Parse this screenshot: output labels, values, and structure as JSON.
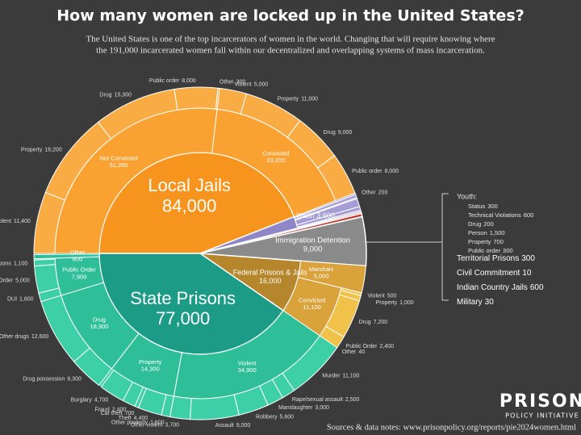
{
  "header": {
    "title": "How many women are locked up in the United States?",
    "subtitle": [
      "The United States is one of the top incarcerators of women in the world. Changing that will require knowing where",
      "the 191,000 incarcerated women fall within our decentralized and overlapping systems of mass incarceration."
    ]
  },
  "chart_data": {
    "type": "sunburst",
    "systems": [
      {
        "name": "Local Jails",
        "value": 84000,
        "label": "84,000",
        "colors": [
          "#f7941d",
          "#f9a232",
          "#faac44"
        ],
        "children": [
          {
            "name": "Not Convicted",
            "value": 51200,
            "label": "51,200",
            "children": [
              {
                "name": "Violent",
                "value": 11400,
                "label": "11,400"
              },
              {
                "name": "Property",
                "value": 16200,
                "label": "16,200"
              },
              {
                "name": "Drug",
                "value": 15300,
                "label": "15,300"
              },
              {
                "name": "Public order",
                "value": 8000,
                "label": "8,000"
              },
              {
                "name": "Other",
                "value": 300
              }
            ]
          },
          {
            "name": "Convicted",
            "value": 33200,
            "label": "33,200",
            "children": [
              {
                "name": "Violent",
                "value": 5000,
                "label": "5,000"
              },
              {
                "name": "Property",
                "value": 11000,
                "label": "11,000"
              },
              {
                "name": "Drug",
                "value": 9000,
                "label": "9,000"
              },
              {
                "name": "Public order",
                "value": 8000,
                "label": "8,000"
              },
              {
                "name": "Other",
                "value": 200
              }
            ]
          }
        ]
      },
      {
        "name": "Youth",
        "value": 3600,
        "label": "3,600",
        "breakdown_title": "Youth:",
        "colors": [
          "#8e86c6",
          "#a49dd6",
          "#a49dd6"
        ],
        "children": [
          {
            "name": "Status",
            "value": 300
          },
          {
            "name": "Technical Violations",
            "value": 600
          },
          {
            "name": "Drug",
            "value": 200
          },
          {
            "name": "Person",
            "value": 1500,
            "label": "1,500"
          },
          {
            "name": "Property",
            "value": 700
          },
          {
            "name": "Public order",
            "value": 300
          }
        ]
      },
      {
        "name": "Territorial Prisons",
        "value": 300,
        "colors": [
          "#d64545"
        ]
      },
      {
        "name": "Civil Commitment",
        "value": 10,
        "colors": [
          "#eeeeee"
        ]
      },
      {
        "name": "Indian Country Jails",
        "value": 600,
        "colors": [
          "#c0392b"
        ]
      },
      {
        "name": "Military",
        "value": 30,
        "colors": [
          "#f2f2f2"
        ]
      },
      {
        "name": "Immigration Detention",
        "value": 9000,
        "label": "9,000",
        "colors": [
          "#8a8a8a"
        ]
      },
      {
        "name": "Federal Prisons & Jails",
        "value": 16000,
        "label": "16,000",
        "colors": [
          "#b5862c",
          "#d9a23a",
          "#f0c24a"
        ],
        "children": [
          {
            "name": "Marshals",
            "value": 5000,
            "label": "5,000"
          },
          {
            "name": "Convicted",
            "value": 11100,
            "label": "11,100",
            "children": [
              {
                "name": "Violent",
                "value": 500
              },
              {
                "name": "Property",
                "value": 1000,
                "label": "1,000"
              },
              {
                "name": "Drug",
                "value": 7200,
                "label": "7,200"
              },
              {
                "name": "Public Order",
                "value": 2400,
                "label": "2,400"
              },
              {
                "name": "Other",
                "value": 40
              }
            ]
          }
        ]
      },
      {
        "name": "State Prisons",
        "value": 77000,
        "label": "77,000",
        "colors": [
          "#1c9c86",
          "#2fbf98",
          "#3dd0a6"
        ],
        "children": [
          {
            "name": "Violent",
            "value": 34900,
            "label": "34,900",
            "children": [
              {
                "name": "Murder",
                "value": 11100,
                "label": "11,100"
              },
              {
                "name": "Rape/sexual assault",
                "value": 2500,
                "label": "2,500"
              },
              {
                "name": "Manslaughter",
                "value": 3000,
                "label": "3,000"
              },
              {
                "name": "Robbery",
                "value": 5600,
                "label": "5,600"
              },
              {
                "name": "Assault",
                "value": 9000,
                "label": "9,000"
              },
              {
                "name": "Other violent",
                "value": 3700,
                "label": "3,700"
              }
            ]
          },
          {
            "name": "Property",
            "value": 14300,
            "label": "14,300",
            "children": [
              {
                "name": "Other property",
                "value": 1600,
                "label": "1,600"
              },
              {
                "name": "Theft",
                "value": 4400,
                "label": "4,400"
              },
              {
                "name": "Car theft",
                "value": 700
              },
              {
                "name": "Fraud",
                "value": 2400,
                "label": "2,400"
              },
              {
                "name": "Burglary",
                "value": 4700,
                "label": "4,700"
              }
            ]
          },
          {
            "name": "Drug",
            "value": 18900,
            "label": "18,900",
            "children": [
              {
                "name": "Drug possession",
                "value": 6300,
                "label": "6,300"
              },
              {
                "name": "Other drugs",
                "value": 12600,
                "label": "12,600"
              }
            ]
          },
          {
            "name": "Public Order",
            "value": 7900,
            "label": "7,900",
            "children": [
              {
                "name": "DUI",
                "value": 1600,
                "label": "1,600"
              },
              {
                "name": "Other Public Order",
                "value": 5000,
                "label": "5,000"
              },
              {
                "name": "Weapons",
                "value": 1100,
                "label": "1,100"
              }
            ]
          },
          {
            "name": "Other",
            "value": 800
          }
        ]
      }
    ]
  },
  "footer": {
    "logo": [
      "PRISON",
      "POLICY INITIATIVE"
    ],
    "source": "Sources & data notes: www.prisonpolicy.org/reports/pie2024women.html"
  }
}
